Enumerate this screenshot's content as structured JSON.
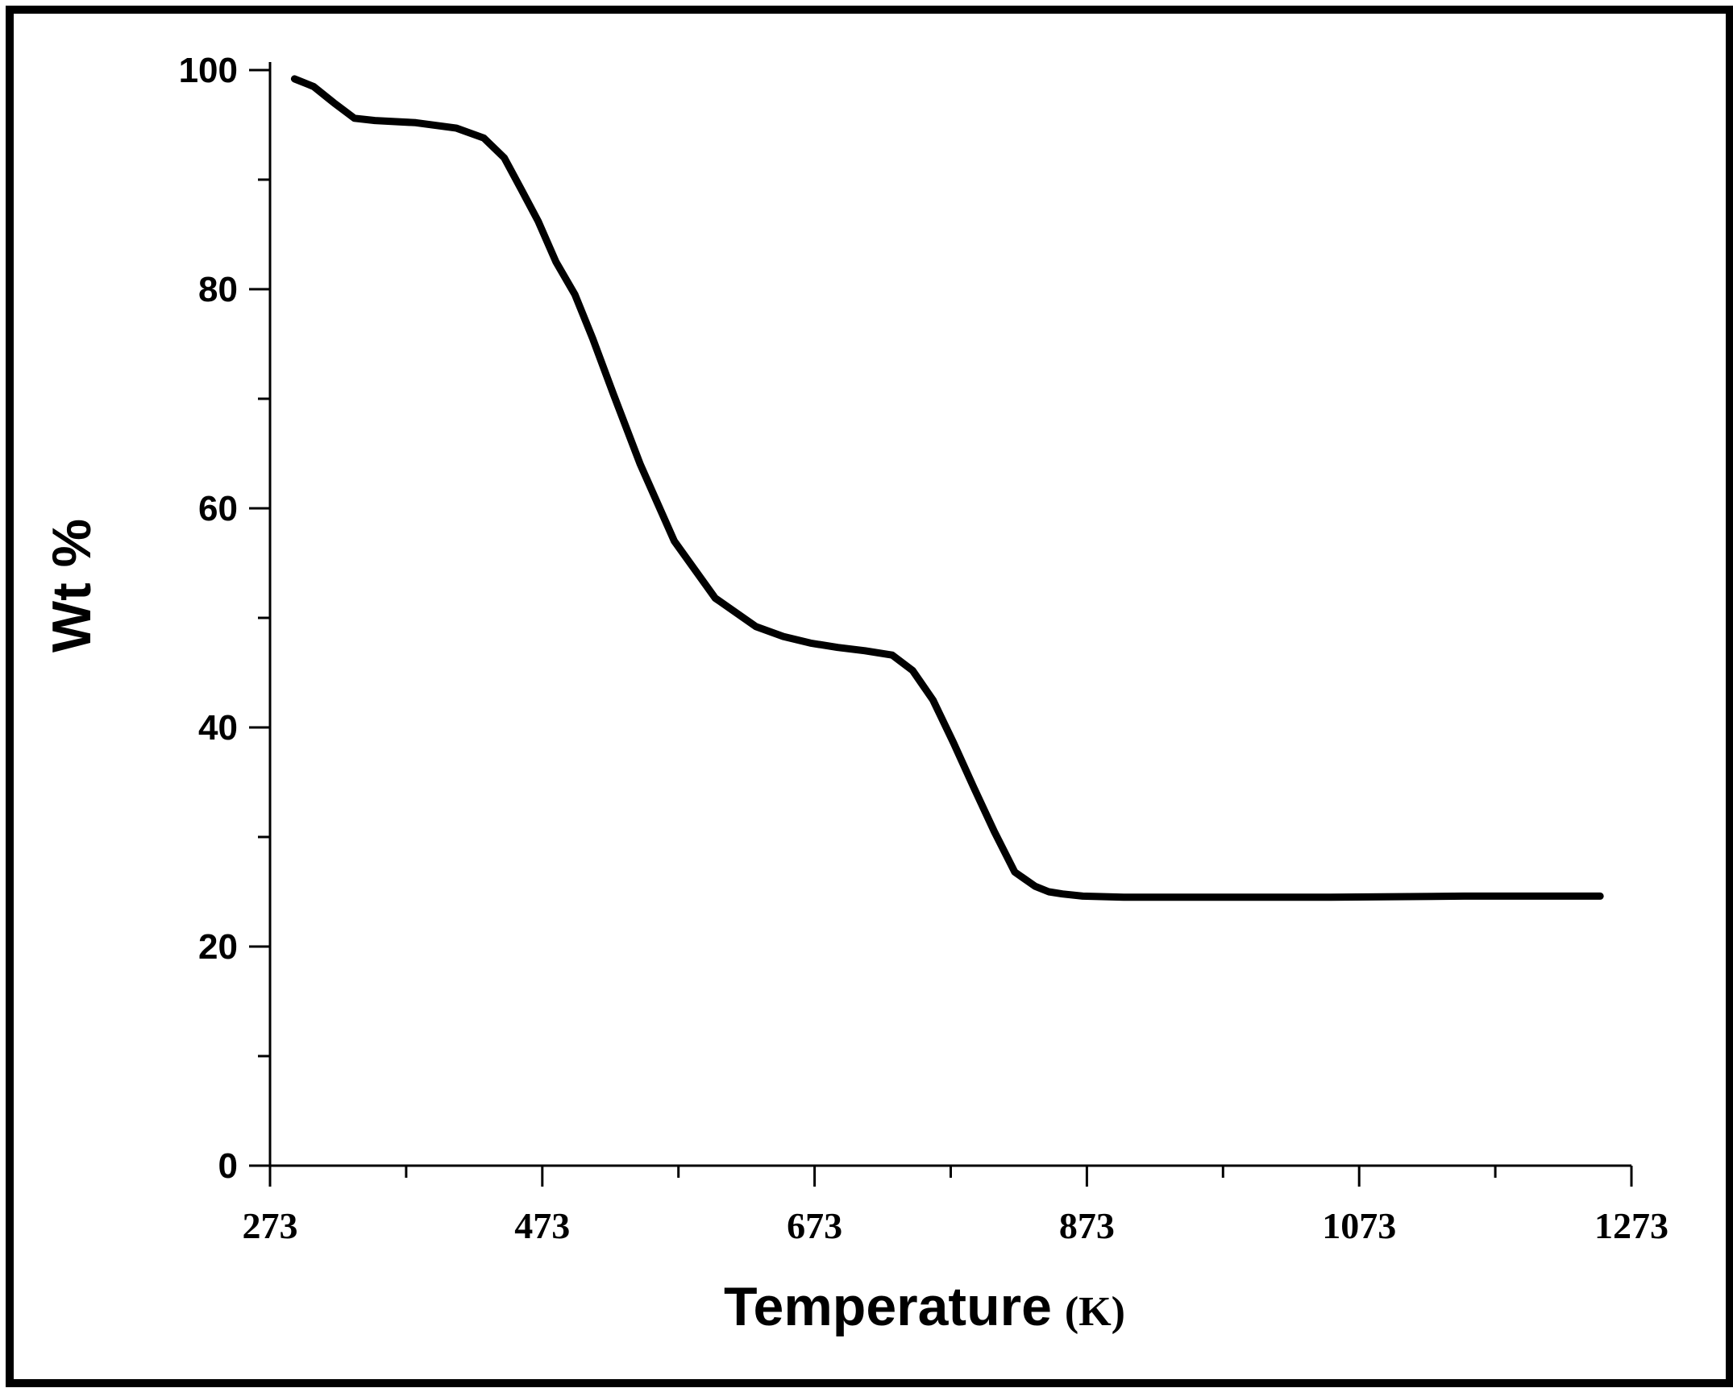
{
  "chart_data": {
    "type": "line",
    "title": "",
    "xlabel": "Temperature",
    "xlabel_unit": "(K)",
    "ylabel": "Wt %",
    "xlim": [
      273,
      1273
    ],
    "ylim": [
      0,
      100
    ],
    "x_ticks": [
      273,
      473,
      673,
      873,
      1073,
      1273
    ],
    "y_ticks": [
      0,
      20,
      40,
      60,
      80,
      100
    ],
    "x_minor_step": 100,
    "y_minor_step": 10,
    "grid": false,
    "line_color": "#000000",
    "series": [
      {
        "x": [
          291,
          305,
          320,
          335,
          350,
          380,
          410,
          430,
          445,
          458,
          470,
          483,
          497,
          510,
          525,
          545,
          570,
          600,
          630,
          650,
          670,
          690,
          710,
          730,
          745,
          760,
          775,
          790,
          805,
          820,
          835,
          845,
          855,
          870,
          900,
          950,
          1050,
          1150,
          1250
        ],
        "y": [
          99.2,
          98.5,
          97.0,
          95.6,
          95.4,
          95.2,
          94.7,
          93.8,
          92.0,
          89.0,
          86.2,
          82.5,
          79.5,
          75.5,
          70.5,
          64.0,
          57.0,
          51.8,
          49.2,
          48.3,
          47.7,
          47.3,
          47.0,
          46.6,
          45.2,
          42.5,
          38.6,
          34.5,
          30.5,
          26.8,
          25.5,
          25.0,
          24.8,
          24.6,
          24.5,
          24.5,
          24.5,
          24.6,
          24.6
        ]
      }
    ]
  }
}
